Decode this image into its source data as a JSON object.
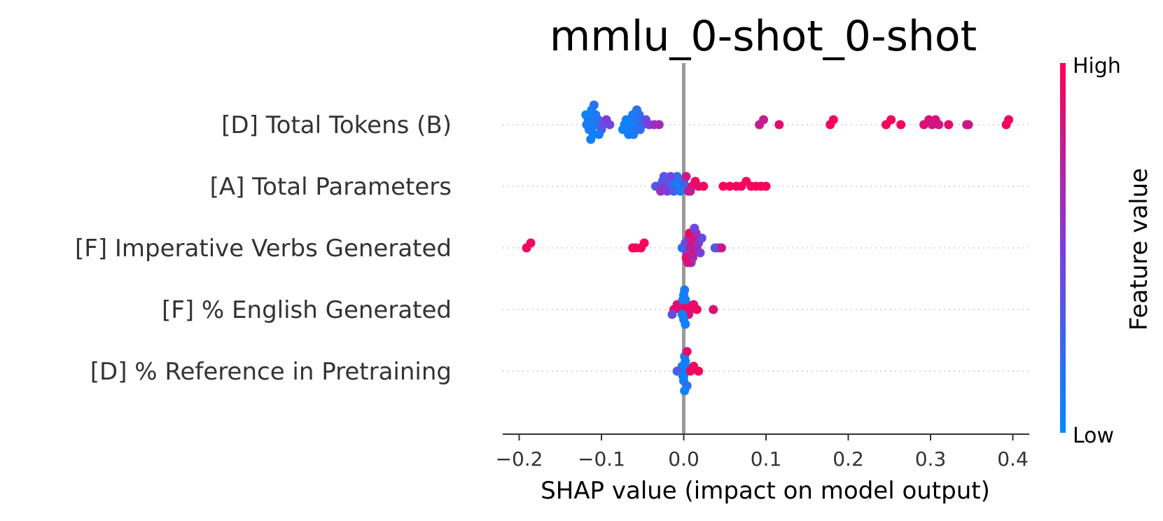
{
  "chart_data": {
    "type": "scatter",
    "subtype": "shap-beeswarm",
    "title": "mmlu_0-shot_0-shot",
    "xlabel": "SHAP value (impact on model output)",
    "xlim": [
      -0.22,
      0.42
    ],
    "xticks": [
      -0.2,
      -0.1,
      0.0,
      0.1,
      0.2,
      0.3,
      0.4
    ],
    "xtick_labels": [
      "−0.2",
      "−0.1",
      "0.0",
      "0.1",
      "0.2",
      "0.3",
      "0.4"
    ],
    "colorbar": {
      "title": "Feature value",
      "high_label": "High",
      "low_label": "Low",
      "low_color": "#008bfb",
      "high_color": "#ff0052"
    },
    "features": [
      {
        "name": "[D] Total Tokens (B)",
        "points": [
          [
            -0.118,
            0.1
          ],
          [
            -0.114,
            0.05
          ],
          [
            -0.11,
            0.15
          ],
          [
            -0.106,
            0.1
          ],
          [
            -0.112,
            0.05
          ],
          [
            -0.116,
            0.12
          ],
          [
            -0.108,
            0.08
          ],
          [
            -0.104,
            0.2
          ],
          [
            -0.1,
            0.3
          ],
          [
            -0.098,
            0.4
          ],
          [
            -0.094,
            0.5
          ],
          [
            -0.09,
            0.45
          ],
          [
            -0.11,
            0.05
          ],
          [
            -0.115,
            0.1
          ],
          [
            -0.112,
            0.06
          ],
          [
            -0.107,
            0.12
          ],
          [
            -0.103,
            0.1
          ],
          [
            -0.119,
            0.05
          ],
          [
            -0.113,
            0.07
          ],
          [
            -0.109,
            0.15
          ],
          [
            -0.072,
            0.05
          ],
          [
            -0.068,
            0.1
          ],
          [
            -0.064,
            0.12
          ],
          [
            -0.06,
            0.08
          ],
          [
            -0.056,
            0.15
          ],
          [
            -0.07,
            0.05
          ],
          [
            -0.066,
            0.07
          ],
          [
            -0.062,
            0.1
          ],
          [
            -0.058,
            0.12
          ],
          [
            -0.054,
            0.2
          ],
          [
            -0.05,
            0.3
          ],
          [
            -0.046,
            0.4
          ],
          [
            -0.042,
            0.5
          ],
          [
            -0.036,
            0.6
          ],
          [
            -0.03,
            0.65
          ],
          [
            -0.074,
            0.05
          ],
          [
            -0.067,
            0.09
          ],
          [
            -0.061,
            0.11
          ],
          [
            -0.057,
            0.14
          ],
          [
            -0.053,
            0.18
          ],
          [
            0.092,
            0.78
          ],
          [
            0.097,
            0.78
          ],
          [
            0.116,
            0.9
          ],
          [
            0.178,
            0.95
          ],
          [
            0.182,
            0.95
          ],
          [
            0.246,
            0.97
          ],
          [
            0.252,
            0.97
          ],
          [
            0.264,
            0.97
          ],
          [
            0.292,
            0.88
          ],
          [
            0.298,
            0.85
          ],
          [
            0.302,
            0.82
          ],
          [
            0.306,
            0.85
          ],
          [
            0.31,
            0.82
          ],
          [
            0.322,
            0.9
          ],
          [
            0.344,
            0.8
          ],
          [
            0.346,
            0.8
          ],
          [
            0.392,
            0.95
          ],
          [
            0.395,
            0.95
          ]
        ]
      },
      {
        "name": "[A] Total Parameters",
        "points": [
          [
            -0.034,
            0.3
          ],
          [
            -0.03,
            0.4
          ],
          [
            -0.026,
            0.3
          ],
          [
            -0.022,
            0.5
          ],
          [
            -0.018,
            0.4
          ],
          [
            -0.014,
            0.2
          ],
          [
            -0.01,
            0.1
          ],
          [
            -0.006,
            0.05
          ],
          [
            -0.002,
            0.1
          ],
          [
            0.002,
            0.2
          ],
          [
            -0.028,
            0.6
          ],
          [
            -0.02,
            0.5
          ],
          [
            -0.012,
            0.3
          ],
          [
            -0.008,
            0.15
          ],
          [
            -0.004,
            0.1
          ],
          [
            0.0,
            0.3
          ],
          [
            -0.016,
            0.45
          ],
          [
            -0.024,
            0.35
          ],
          [
            0.006,
            0.85
          ],
          [
            0.01,
            0.9
          ],
          [
            0.014,
            0.95
          ],
          [
            0.018,
            0.9
          ],
          [
            0.024,
            0.95
          ],
          [
            0.048,
            0.97
          ],
          [
            0.056,
            0.97
          ],
          [
            0.064,
            0.97
          ],
          [
            0.07,
            0.95
          ],
          [
            0.076,
            0.97
          ],
          [
            0.082,
            0.97
          ],
          [
            0.088,
            0.97
          ],
          [
            0.094,
            0.97
          ],
          [
            0.1,
            0.95
          ],
          [
            0.003,
            0.8
          ],
          [
            0.008,
            0.75
          ]
        ]
      },
      {
        "name": "[F] Imperative Verbs Generated",
        "points": [
          [
            -0.191,
            0.95
          ],
          [
            -0.186,
            0.95
          ],
          [
            -0.062,
            0.95
          ],
          [
            -0.058,
            0.95
          ],
          [
            -0.052,
            0.97
          ],
          [
            -0.048,
            0.97
          ],
          [
            -0.002,
            0.1
          ],
          [
            0.0,
            0.2
          ],
          [
            0.002,
            0.4
          ],
          [
            0.004,
            0.5
          ],
          [
            0.006,
            0.6
          ],
          [
            0.008,
            0.7
          ],
          [
            0.01,
            0.8
          ],
          [
            0.012,
            0.85
          ],
          [
            0.014,
            0.9
          ],
          [
            0.016,
            0.7
          ],
          [
            0.018,
            0.6
          ],
          [
            0.02,
            0.5
          ],
          [
            0.022,
            0.4
          ],
          [
            0.003,
            0.9
          ],
          [
            0.007,
            0.95
          ],
          [
            0.011,
            0.75
          ],
          [
            0.015,
            0.65
          ],
          [
            0.009,
            0.55
          ],
          [
            0.005,
            0.85
          ],
          [
            0.013,
            0.45
          ],
          [
            0.038,
            0.3
          ],
          [
            0.042,
            0.35
          ],
          [
            0.046,
            0.8
          ]
        ]
      },
      {
        "name": "[F] % English Generated",
        "points": [
          [
            -0.012,
            0.9
          ],
          [
            -0.008,
            0.95
          ],
          [
            -0.004,
            0.9
          ],
          [
            0.0,
            0.95
          ],
          [
            0.004,
            0.9
          ],
          [
            0.008,
            0.95
          ],
          [
            0.012,
            0.9
          ],
          [
            0.016,
            0.95
          ],
          [
            0.006,
            0.85
          ],
          [
            -0.006,
            0.85
          ],
          [
            0.002,
            0.05
          ],
          [
            0.0,
            0.08
          ],
          [
            -0.002,
            0.05
          ],
          [
            0.0,
            0.1
          ],
          [
            0.002,
            0.06
          ],
          [
            -0.001,
            0.08
          ],
          [
            0.001,
            0.1
          ],
          [
            -0.014,
            0.4
          ],
          [
            0.036,
            0.85
          ]
        ]
      },
      {
        "name": "[D] % Reference in Pretraining",
        "points": [
          [
            0.0,
            0.05
          ],
          [
            0.002,
            0.1
          ],
          [
            -0.002,
            0.05
          ],
          [
            0.0,
            0.1
          ],
          [
            0.002,
            0.05
          ],
          [
            -0.002,
            0.08
          ],
          [
            0.0,
            0.06
          ],
          [
            0.001,
            0.1
          ],
          [
            -0.008,
            0.3
          ],
          [
            0.004,
            0.2
          ],
          [
            0.008,
            0.95
          ],
          [
            0.012,
            0.95
          ],
          [
            0.018,
            0.97
          ],
          [
            0.004,
            0.9
          ],
          [
            -0.001,
            0.07
          ],
          [
            0.001,
            0.04
          ]
        ]
      }
    ]
  }
}
